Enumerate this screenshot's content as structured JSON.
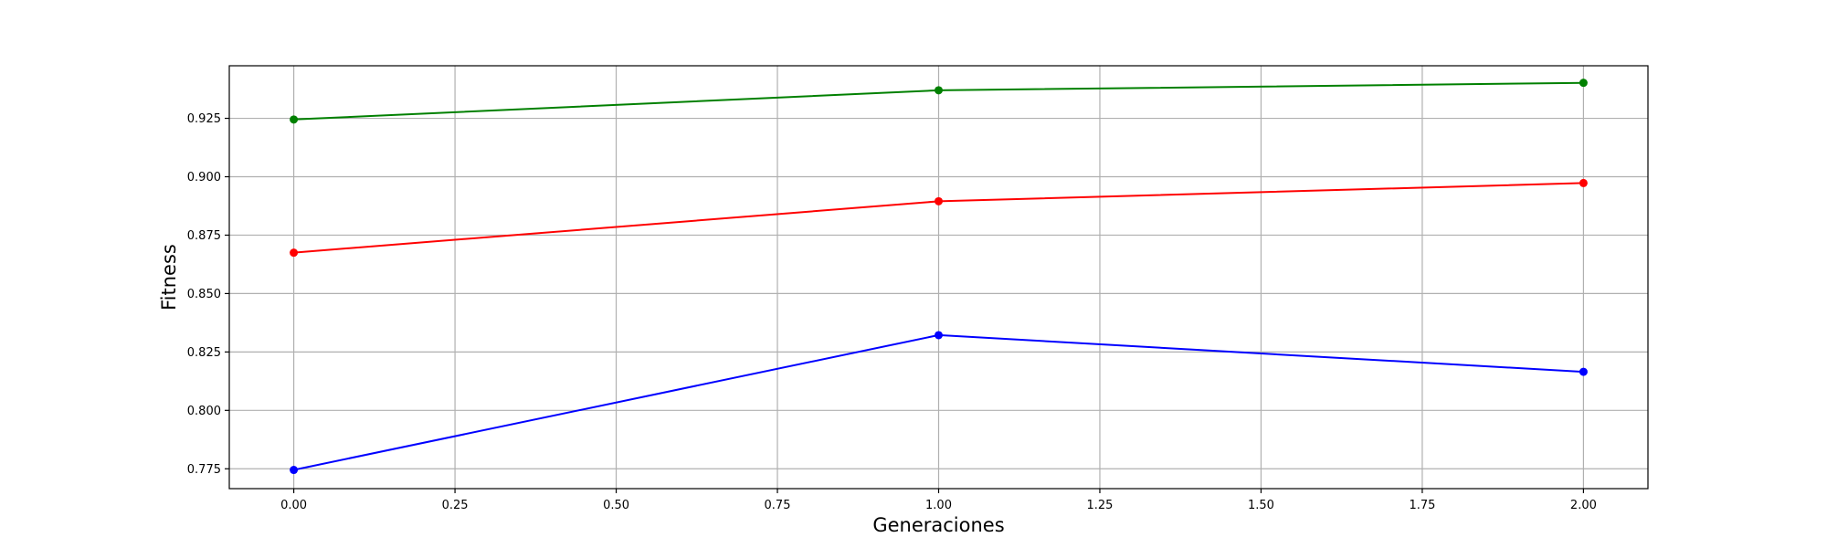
{
  "chart_data": {
    "type": "line",
    "xlabel": "Generaciones",
    "ylabel": "Fitness",
    "xlim": [
      -0.1,
      2.1
    ],
    "ylim": [
      0.7665,
      0.9475
    ],
    "x_ticks": [
      "0.00",
      "0.25",
      "0.50",
      "0.75",
      "1.00",
      "1.25",
      "1.50",
      "1.75",
      "2.00"
    ],
    "y_ticks": [
      "0.775",
      "0.800",
      "0.825",
      "0.850",
      "0.875",
      "0.900",
      "0.925"
    ],
    "grid": true,
    "x": [
      0,
      1,
      2
    ],
    "series": [
      {
        "color": "#008000",
        "marker": "circle",
        "values": [
          0.9245,
          0.937,
          0.9402
        ]
      },
      {
        "color": "#ff0000",
        "marker": "circle",
        "values": [
          0.8675,
          0.8895,
          0.8973
        ]
      },
      {
        "color": "#0000ff",
        "marker": "circle",
        "values": [
          0.7745,
          0.8322,
          0.8165
        ]
      }
    ]
  }
}
